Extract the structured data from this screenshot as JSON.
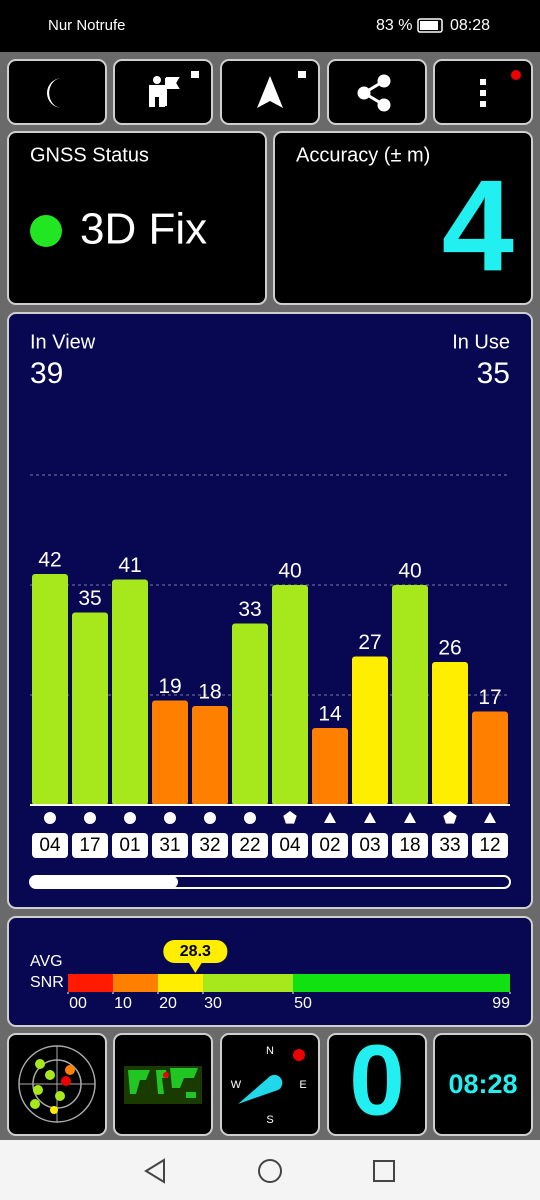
{
  "status_bar": {
    "carrier": "Nur Notrufe",
    "battery": "83 %",
    "time": "08:28"
  },
  "gnss_status": {
    "title": "GNSS Status",
    "fix": "3D Fix"
  },
  "accuracy": {
    "title": "Accuracy (± m)",
    "value": 4
  },
  "satellites": {
    "in_view_label": "In View",
    "in_view": 39,
    "in_use_label": "In Use",
    "in_use": 35
  },
  "chart_data": {
    "type": "bar",
    "categories": [
      "04",
      "17",
      "01",
      "31",
      "32",
      "22",
      "04",
      "02",
      "03",
      "18",
      "33",
      "12"
    ],
    "values": [
      42,
      35,
      41,
      19,
      18,
      33,
      40,
      14,
      27,
      40,
      26,
      17
    ],
    "colors": [
      "#a6e81c",
      "#a6e81c",
      "#a6e81c",
      "#ff8000",
      "#ff8000",
      "#a6e81c",
      "#a6e81c",
      "#ff8000",
      "#ffee00",
      "#a6e81c",
      "#ffee00",
      "#ff8000"
    ],
    "markers": [
      "circle",
      "circle",
      "circle",
      "circle",
      "circle",
      "circle",
      "pentagon",
      "triangle",
      "triangle",
      "triangle",
      "pentagon",
      "triangle"
    ],
    "ylim": [
      0,
      66
    ],
    "yticks": [
      20,
      40,
      60
    ],
    "grid": true
  },
  "avg_snr": {
    "label_1": "AVG",
    "label_2": "SNR",
    "value": 28.3,
    "ticks": [
      {
        "value": 0,
        "label": "00"
      },
      10,
      20,
      30,
      50,
      99
    ],
    "colors": [
      "#ff1a00",
      "#ff8000",
      "#ffee00",
      "#a6e81c",
      "#11e011"
    ]
  },
  "tiles": {
    "compass": {
      "n": "N",
      "e": "E",
      "s": "S",
      "w": "W"
    },
    "count": 0,
    "clock": "08:28"
  }
}
